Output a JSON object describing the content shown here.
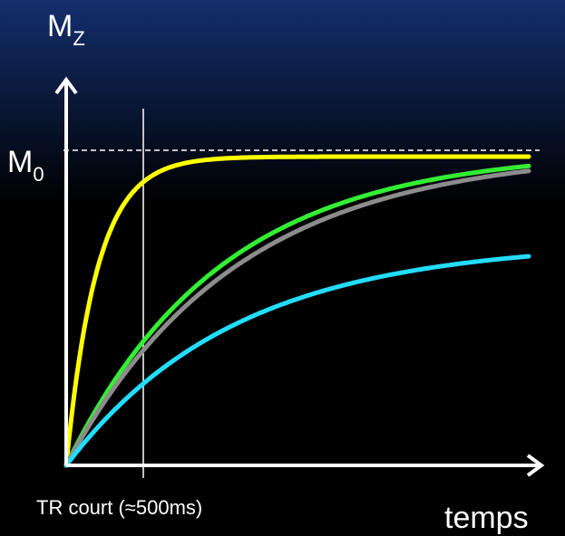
{
  "chart_data": {
    "type": "line",
    "yaxis_label": "M",
    "yaxis_label_sub": "Z",
    "xaxis_label": "temps",
    "reference_line": {
      "label": "M",
      "label_sub": "0",
      "y": 1.0,
      "style": "dashed"
    },
    "marker_line": {
      "label": "TR court (≈500ms)",
      "x": 500
    },
    "xlim": [
      0,
      3000
    ],
    "ylim": [
      0,
      1.22
    ],
    "series": [
      {
        "color": "#ffff00",
        "t1": 200,
        "plateau": 0.98
      },
      {
        "color": "#33ee33",
        "t1": 1000,
        "plateau": 1.0
      },
      {
        "color": "#8c8c8c",
        "t1": 1100,
        "plateau": 1.0
      },
      {
        "color": "#22ddff",
        "t1": 1100,
        "plateau": 0.71
      }
    ],
    "colors": {
      "background_top": "#142f6e",
      "background": "#000000",
      "axis": "#ffffff",
      "reference_line": "#ffffff",
      "marker_line": "#ffffff"
    }
  }
}
